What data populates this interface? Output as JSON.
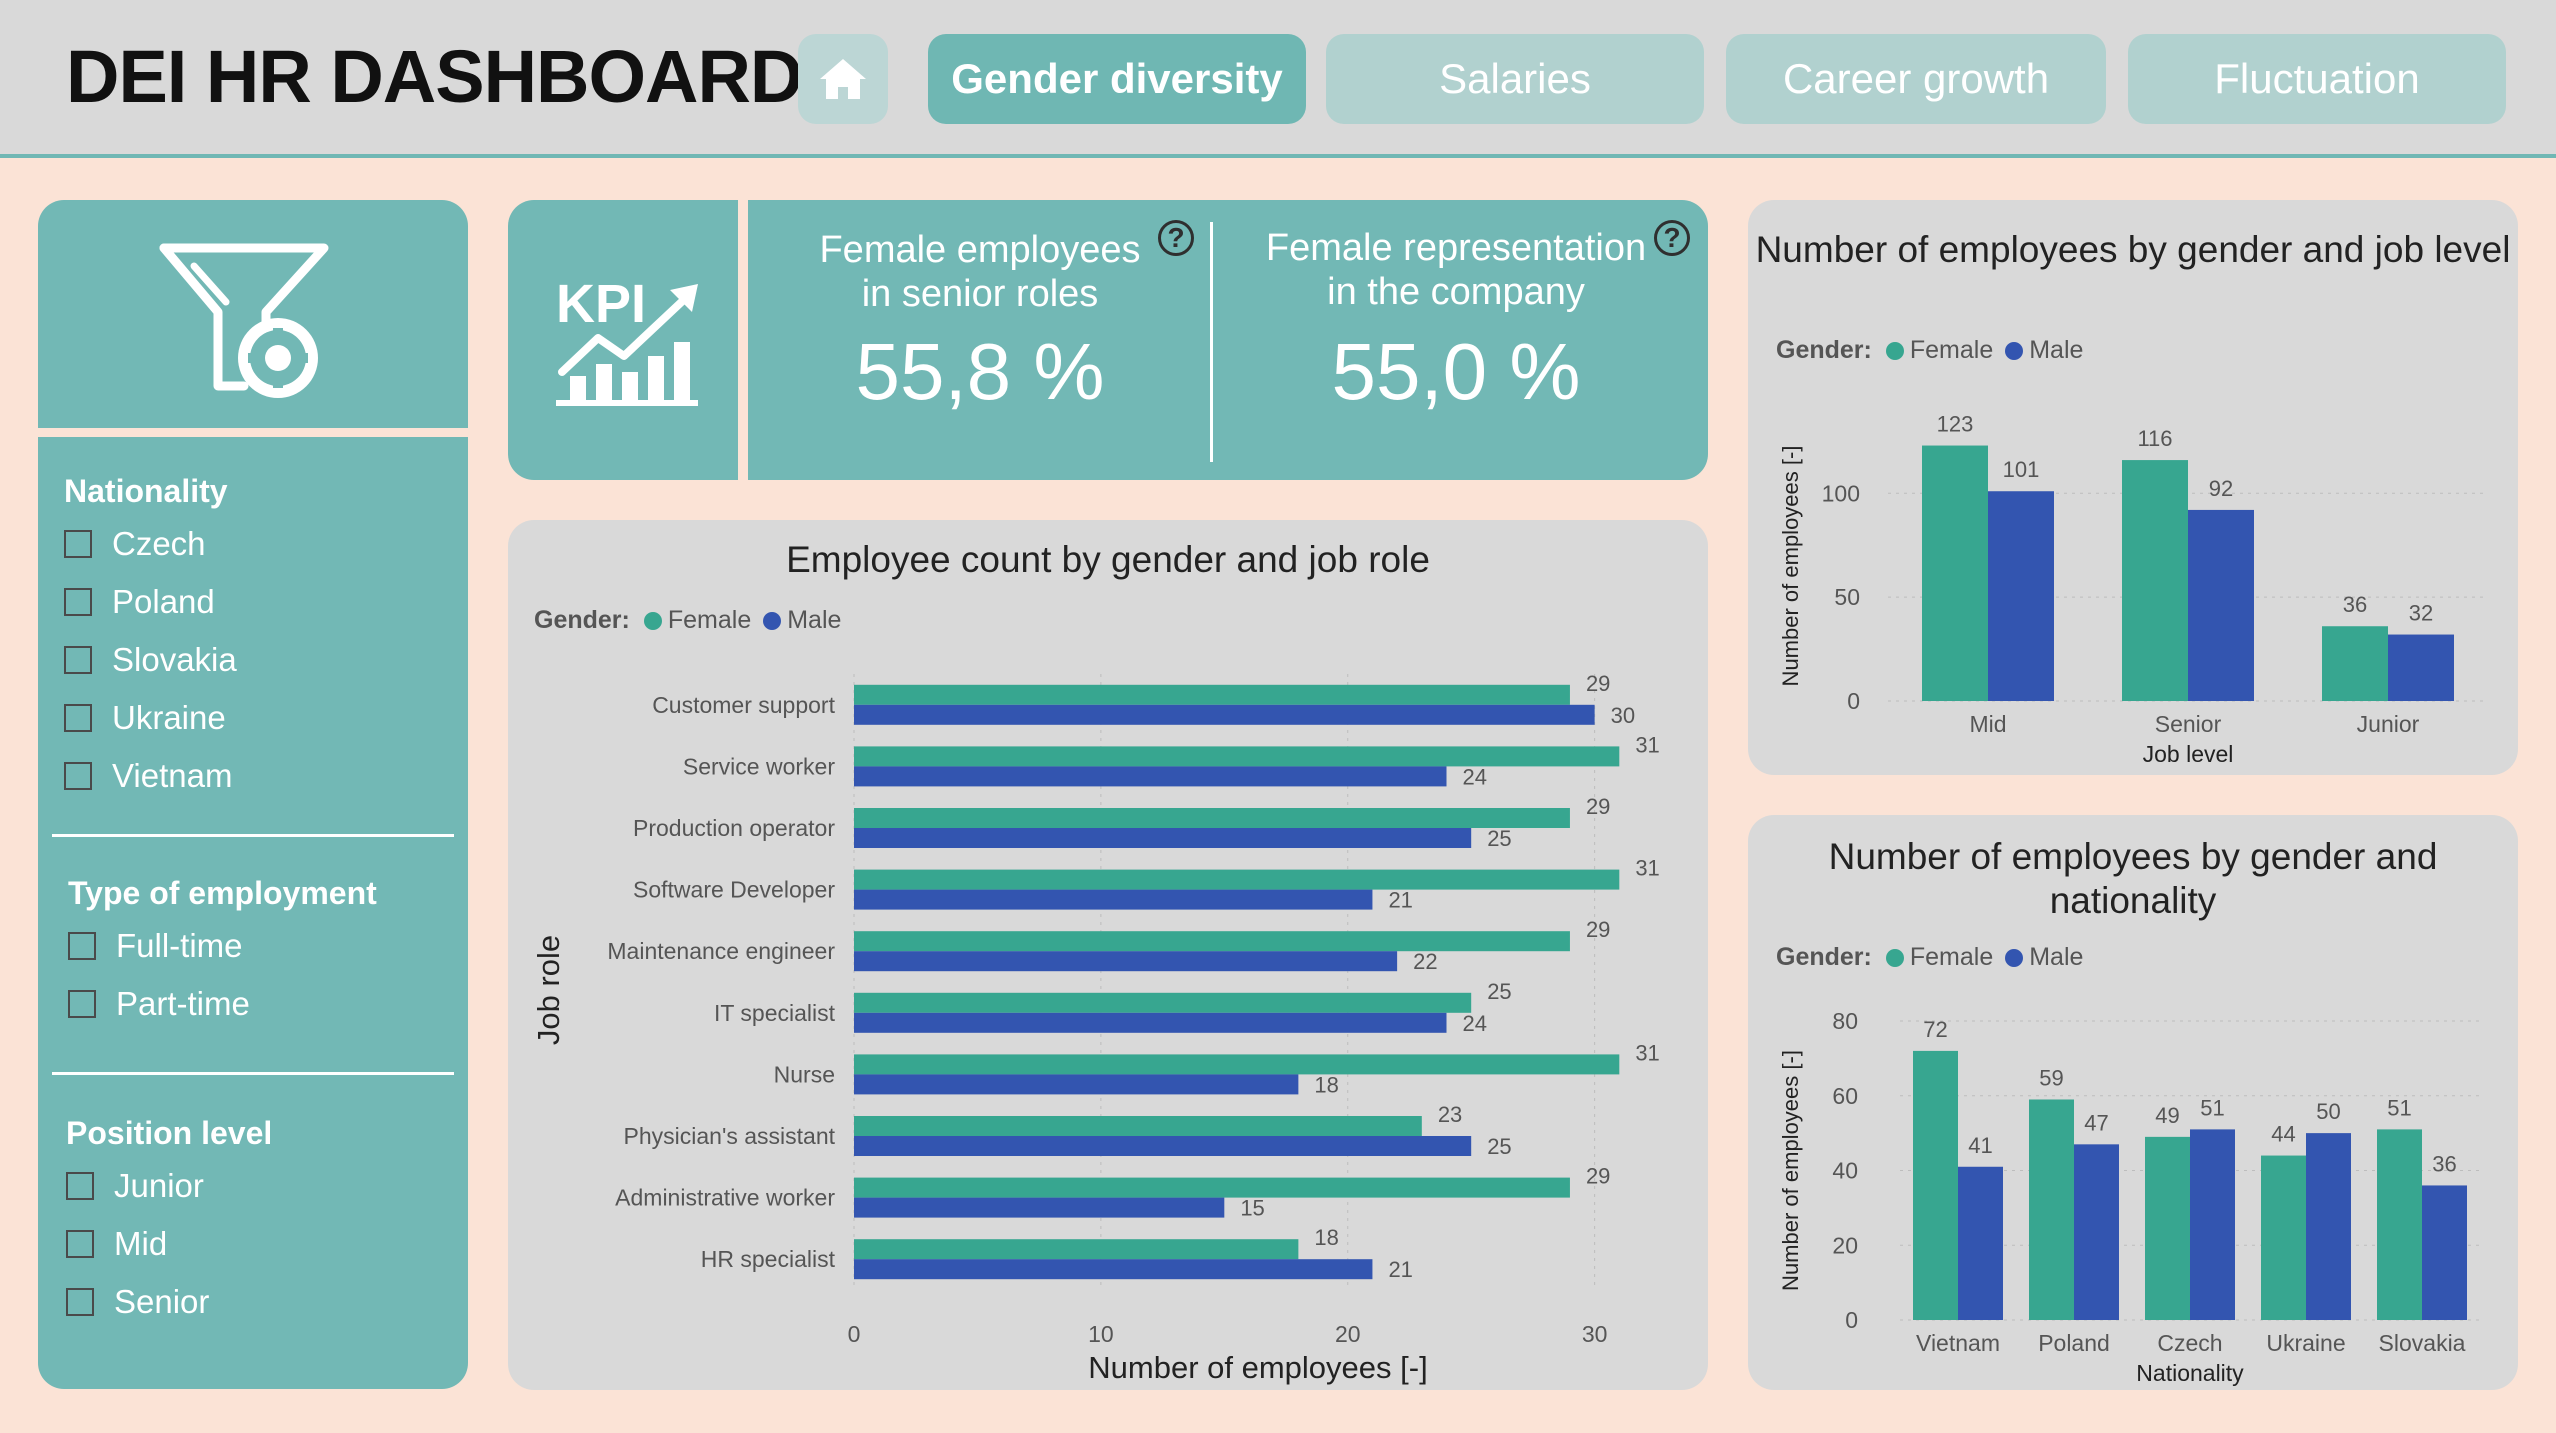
{
  "app": {
    "title": "DEI HR DASHBOARD"
  },
  "nav": {
    "home_icon": "home-icon",
    "tabs": [
      {
        "label": "Gender diversity",
        "active": true
      },
      {
        "label": "Salaries",
        "active": false
      },
      {
        "label": "Career growth",
        "active": false
      },
      {
        "label": "Fluctuation",
        "active": false
      }
    ]
  },
  "filters": {
    "icon": "filter-settings-icon",
    "sections": [
      {
        "title": "Nationality",
        "options": [
          "Czech",
          "Poland",
          "Slovakia",
          "Ukraine",
          "Vietnam"
        ]
      },
      {
        "title": "Type of employment",
        "options": [
          "Full-time",
          "Part-time"
        ]
      },
      {
        "title": "Position level",
        "options": [
          "Junior",
          "Mid",
          "Senior"
        ]
      }
    ]
  },
  "kpi": {
    "icon": "kpi-chart-icon",
    "cards": [
      {
        "label_line1": "Female employees",
        "label_line2": "in senior roles",
        "value": "55,8 %"
      },
      {
        "label_line1": "Female representation",
        "label_line2": "in the company",
        "value": "55,0 %"
      }
    ],
    "help_glyph": "?"
  },
  "colors": {
    "female": "#37a690",
    "male": "#3355b0",
    "teal": "#72b8b5",
    "panel_grey": "#d9d9d9"
  },
  "legend": {
    "label": "Gender:",
    "female": "Female",
    "male": "Male"
  },
  "chart_data": [
    {
      "type": "bar",
      "orientation": "horizontal",
      "title": "Employee count by gender and job role",
      "xlabel": "Number of employees [-]",
      "ylabel": "Job role",
      "xlim": [
        0,
        32
      ],
      "xticks": [
        0,
        10,
        20,
        30
      ],
      "categories": [
        "Customer support",
        "Service worker",
        "Production operator",
        "Software Developer",
        "Maintenance engineer",
        "IT specialist",
        "Nurse",
        "Physician's assistant",
        "Administrative worker",
        "HR specialist"
      ],
      "series": [
        {
          "name": "Female",
          "values": [
            29,
            31,
            29,
            31,
            29,
            25,
            31,
            23,
            29,
            18
          ]
        },
        {
          "name": "Male",
          "values": [
            30,
            24,
            25,
            21,
            22,
            24,
            18,
            25,
            15,
            21
          ]
        }
      ]
    },
    {
      "type": "bar",
      "title": "Number of employees by gender and job level",
      "xlabel": "Job level",
      "ylabel": "Number of employees [-]",
      "ylim": [
        0,
        130
      ],
      "yticks": [
        0,
        50,
        100
      ],
      "categories": [
        "Mid",
        "Senior",
        "Junior"
      ],
      "series": [
        {
          "name": "Female",
          "values": [
            123,
            116,
            36
          ]
        },
        {
          "name": "Male",
          "values": [
            101,
            92,
            32
          ]
        }
      ]
    },
    {
      "type": "bar",
      "title": "Number of employees by gender and nationality",
      "xlabel": "Nationality",
      "ylabel": "Number of employees [-]",
      "ylim": [
        0,
        80
      ],
      "yticks": [
        0,
        20,
        40,
        60,
        80
      ],
      "categories": [
        "Vietnam",
        "Poland",
        "Czech",
        "Ukraine",
        "Slovakia"
      ],
      "series": [
        {
          "name": "Female",
          "values": [
            72,
            59,
            49,
            44,
            51
          ]
        },
        {
          "name": "Male",
          "values": [
            41,
            47,
            51,
            50,
            36
          ]
        }
      ]
    }
  ]
}
